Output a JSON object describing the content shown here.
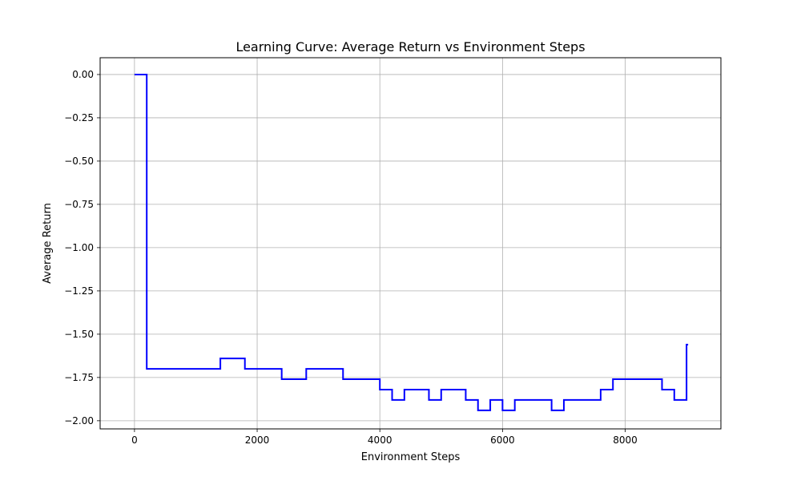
{
  "chart_data": {
    "type": "line",
    "title": "Learning Curve: Average Return vs Environment Steps",
    "xlabel": "Environment Steps",
    "ylabel": "Average Return",
    "xlim": [
      -560,
      9560
    ],
    "ylim": [
      -2.047,
      0.097
    ],
    "xticks": [
      0,
      2000,
      4000,
      6000,
      8000
    ],
    "xtick_labels": [
      "0",
      "2000",
      "4000",
      "6000",
      "8000"
    ],
    "yticks": [
      0.0,
      -0.25,
      -0.5,
      -0.75,
      -1.0,
      -1.25,
      -1.5,
      -1.75,
      -2.0
    ],
    "ytick_labels": [
      "0.00",
      "−0.25",
      "−0.50",
      "−0.75",
      "−1.00",
      "−1.25",
      "−1.50",
      "−1.75",
      "−2.00"
    ],
    "grid": true,
    "step": "post",
    "series": [
      {
        "color": "#0000ff",
        "x": [
          0,
          200,
          400,
          600,
          800,
          1000,
          1200,
          1400,
          1600,
          1800,
          2000,
          2200,
          2400,
          2600,
          2800,
          3000,
          3200,
          3400,
          3600,
          3800,
          4000,
          4200,
          4400,
          4600,
          4800,
          5000,
          5200,
          5400,
          5600,
          5800,
          6000,
          6200,
          6400,
          6600,
          6800,
          7000,
          7200,
          7400,
          7600,
          7800,
          8000,
          8200,
          8400,
          8600,
          8800,
          9000
        ],
        "y": [
          0.0,
          -1.7,
          -1.7,
          -1.7,
          -1.7,
          -1.7,
          -1.7,
          -1.64,
          -1.64,
          -1.7,
          -1.7,
          -1.7,
          -1.76,
          -1.76,
          -1.7,
          -1.7,
          -1.7,
          -1.76,
          -1.76,
          -1.76,
          -1.82,
          -1.88,
          -1.82,
          -1.82,
          -1.88,
          -1.82,
          -1.82,
          -1.88,
          -1.94,
          -1.88,
          -1.94,
          -1.88,
          -1.88,
          -1.88,
          -1.94,
          -1.88,
          -1.88,
          -1.88,
          -1.82,
          -1.76,
          -1.76,
          -1.76,
          -1.76,
          -1.82,
          -1.88,
          -1.56
        ]
      }
    ]
  }
}
